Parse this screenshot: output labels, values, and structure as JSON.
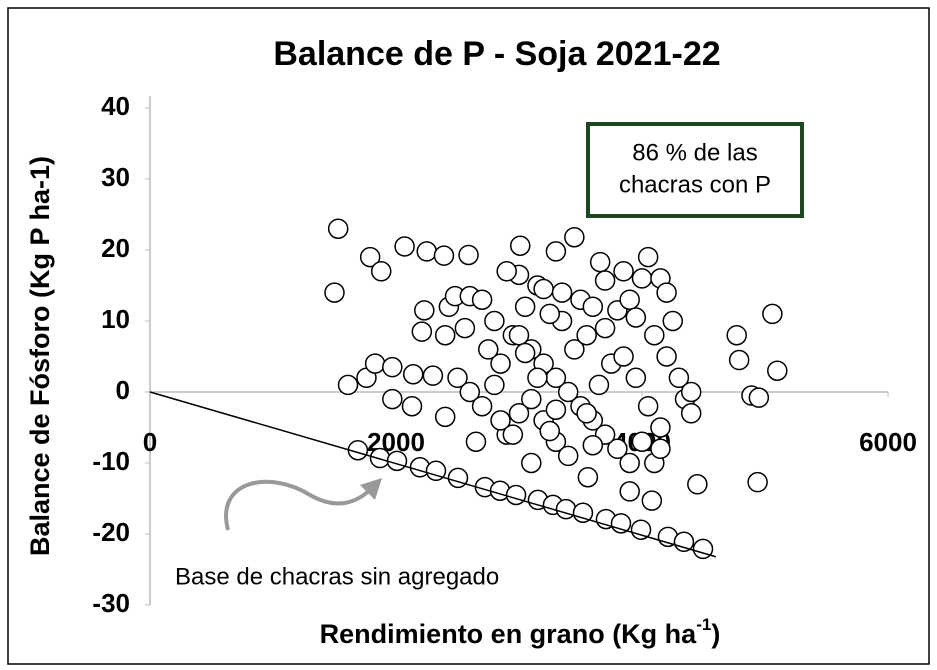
{
  "chart_data": {
    "type": "scatter",
    "title": "Balance de P - Soja 2021-22",
    "xlabel": "Rendimiento en grano (Kg ha",
    "xlabel_sup": "-1",
    "xlabel_end": ")",
    "ylabel": "Balance de Fósforo (Kg P ha-1)",
    "xlim": [
      0,
      6000
    ],
    "ylim": [
      -30,
      40
    ],
    "xticks": [
      0,
      2000,
      4000,
      6000
    ],
    "yticks": [
      40,
      30,
      20,
      10,
      0,
      -10,
      -20,
      -30
    ],
    "marker_fill": "#ffffff",
    "marker_stroke": "#000000",
    "annotations": [
      [
        "86 % de las",
        "chacras con P"
      ],
      [
        "Base de chacras sin agregado"
      ]
    ],
    "annotation_box_color": "#1e4620",
    "trend_line": {
      "x": [
        0,
        4600
      ],
      "y": [
        0,
        -23.2
      ],
      "color": "#000000"
    },
    "x": [
      1690,
      1870,
      2008,
      2195,
      2325,
      2504,
      2723,
      2846,
      2976,
      3154,
      3276,
      3382,
      3520,
      3707,
      3829,
      3992,
      4211,
      4341,
      4496,
      1500,
      1530,
      1790,
      1880,
      2070,
      2250,
      2390,
      2590,
      3010,
      3300,
      3450,
      3660,
      4050,
      4770,
      4790,
      4890,
      4940,
      4950,
      5060,
      5100,
      4450,
      4080,
      3560,
      3900,
      1610,
      1760,
      1830,
      1970,
      1970,
      2140,
      2130,
      2300,
      2210,
      2230,
      2430,
      2480,
      2600,
      2700,
      2400,
      2560,
      2800,
      2500,
      2600,
      2700,
      2400,
      2650,
      2900,
      2850,
      2750,
      2950,
      3050,
      3150,
      3000,
      2900,
      3200,
      3350,
      3500,
      3600,
      3700,
      3800,
      3900,
      4000,
      4150,
      4200,
      4250,
      4200,
      4300,
      4350,
      4400,
      4400,
      4150,
      4000,
      3900,
      3800,
      3700,
      3600,
      3500,
      3400,
      3300,
      3200,
      3100,
      3000,
      3100,
      3200,
      3300,
      3400,
      3100,
      2850,
      3000,
      3300,
      3550,
      3650,
      3750,
      3850,
      3950,
      4050,
      4100,
      4150,
      3450,
      3550,
      3350,
      3250,
      3150,
      3700,
      3850,
      3950,
      4100,
      3600,
      3250,
      2950,
      2800,
      3050
    ],
    "y": [
      -8.2,
      -9.3,
      -9.7,
      -10.6,
      -11.1,
      -12.1,
      -13.4,
      -13.9,
      -14.5,
      -15.2,
      -15.9,
      -16.5,
      -17.0,
      -17.9,
      -18.5,
      -19.4,
      -20.4,
      -21.1,
      -22.1,
      14,
      23,
      19,
      17,
      20.5,
      19.8,
      19.2,
      19.3,
      20.6,
      19.8,
      21.8,
      18.3,
      19,
      8,
      4.5,
      -0.5,
      -12.7,
      -0.8,
      11,
      3,
      -13,
      -15.3,
      -12,
      -14,
      1,
      2,
      4,
      3.5,
      -1,
      2.5,
      -2,
      2.3,
      8.5,
      11.5,
      12,
      13.5,
      13.5,
      13,
      8,
      9,
      10,
      2,
      0,
      -2,
      -3.5,
      -7,
      -6,
      4,
      6,
      8,
      12,
      15,
      16.5,
      17,
      14.5,
      14,
      13,
      12,
      9,
      11.5,
      13,
      16,
      16,
      14,
      10,
      5,
      2,
      -1,
      -3,
      0,
      -5,
      -7,
      -10,
      -8,
      -6,
      -4,
      -2,
      0,
      2,
      4,
      6,
      8,
      -1,
      -4,
      -7,
      -9,
      -10,
      -4,
      -3,
      -2.5,
      -3,
      1,
      4,
      5,
      2,
      -2,
      -10,
      -8,
      6,
      8,
      10,
      11,
      2,
      15.7,
      17,
      10.5,
      8,
      -7.5,
      -5.5,
      -6,
      1,
      5.5
    ]
  }
}
